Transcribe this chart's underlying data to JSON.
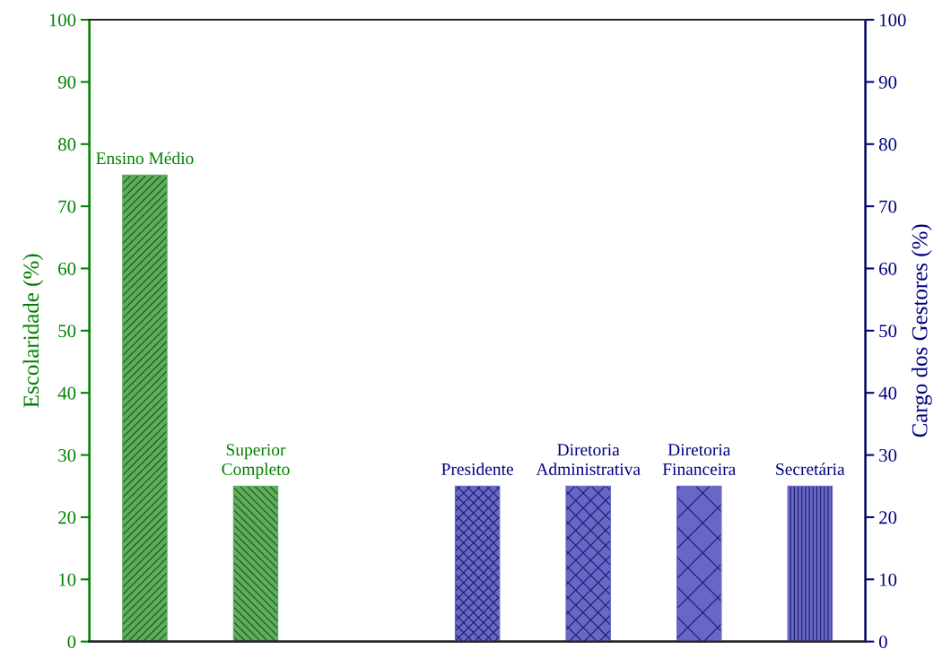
{
  "chart_data": {
    "type": "bar",
    "categories": [
      "Ensino Médio",
      "Superior Completo",
      null,
      "Presidente",
      "Diretoria Administrativa",
      "Diretoria Financeira",
      "Secretária"
    ],
    "series": [
      {
        "color": "#5cae5c",
        "values": [
          75,
          25,
          null,
          null,
          null,
          null,
          null
        ]
      },
      {
        "color": "#6767c8",
        "values": [
          null,
          null,
          null,
          25,
          25,
          25,
          25
        ],
        "axis": "y2"
      }
    ],
    "ylabel": "Escolaridade (%)",
    "y2label": "Cargo dos Gestores (%)",
    "ylim": [
      0,
      100
    ],
    "yticks": [
      0,
      10,
      20,
      30,
      40,
      50,
      60,
      70,
      80,
      90,
      100
    ],
    "y2lim": [
      0,
      100
    ],
    "y2ticks": [
      0,
      10,
      20,
      30,
      40,
      50,
      60,
      70,
      80,
      90,
      100
    ],
    "tick_labels": "y",
    "grid": false,
    "legend": false
  }
}
